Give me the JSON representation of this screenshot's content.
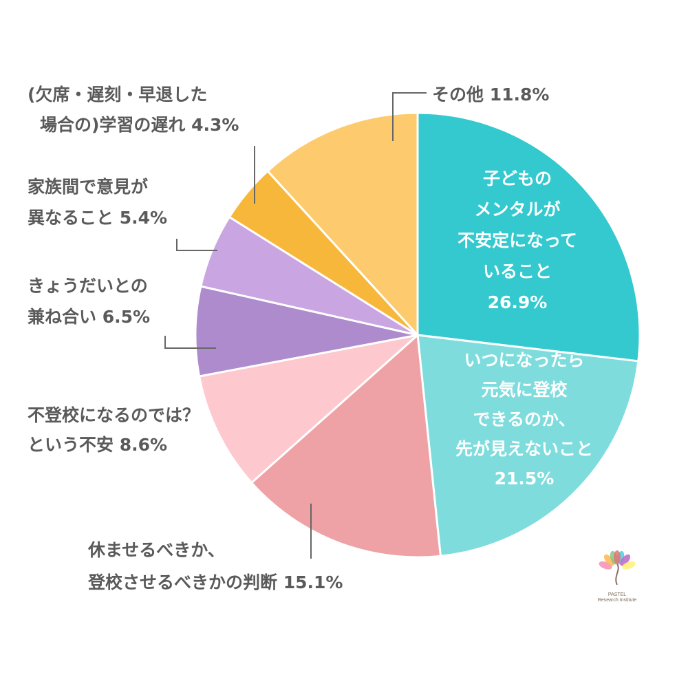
{
  "chart_data": {
    "type": "pie",
    "title": "",
    "start_angle_deg": 0,
    "direction": "clockwise",
    "slices": [
      {
        "lines": [
          "子どもの",
          "メンタルが",
          "不安定になって",
          "いること"
        ],
        "value_label": "26.9%",
        "value": 26.9,
        "color": "#33c9cf",
        "label_color": "#ffffff"
      },
      {
        "lines": [
          "いつになったら",
          "元気に登校",
          "できるのか、",
          "先が見えないこと"
        ],
        "value_label": "21.5%",
        "value": 21.5,
        "color": "#7fdcdd",
        "label_color": "#ffffff"
      },
      {
        "lines": [
          "休ませるべきか、",
          "登校させるべきかの判断"
        ],
        "value_label": "15.1%",
        "value": 15.1,
        "color": "#eea2a6",
        "label_color": "#5a5a5a"
      },
      {
        "lines": [
          "不登校になるのでは？",
          "という不安"
        ],
        "value_label": "8.6%",
        "value": 8.6,
        "color": "#fdc8ce",
        "label_color": "#5a5a5a"
      },
      {
        "lines": [
          "きょうだいとの",
          "兼ね合い"
        ],
        "value_label": "6.5%",
        "value": 6.5,
        "color": "#ae8bcc",
        "label_color": "#5a5a5a"
      },
      {
        "lines": [
          "家族間で意見が",
          "異なること"
        ],
        "value_label": "5.4%",
        "value": 5.4,
        "color": "#c9a5e2",
        "label_color": "#5a5a5a"
      },
      {
        "lines": [
          "(欠席・遅刻・早退した",
          "場合の)学習の遅れ"
        ],
        "value_label": "4.3%",
        "value": 4.3,
        "color": "#f7b73a",
        "label_color": "#5a5a5a"
      },
      {
        "lines": [
          "その他"
        ],
        "value_label": "11.8%",
        "value": 11.8,
        "color": "#fdcb6e",
        "label_color": "#5a5a5a"
      }
    ]
  },
  "logo": {
    "line1": "PASTEL",
    "line2": "Research Institute",
    "petal_colors": [
      "#f48fb1",
      "#ffb74d",
      "#81c784",
      "#4dd0e1",
      "#ba68c8",
      "#fff176",
      "#e57373"
    ]
  }
}
